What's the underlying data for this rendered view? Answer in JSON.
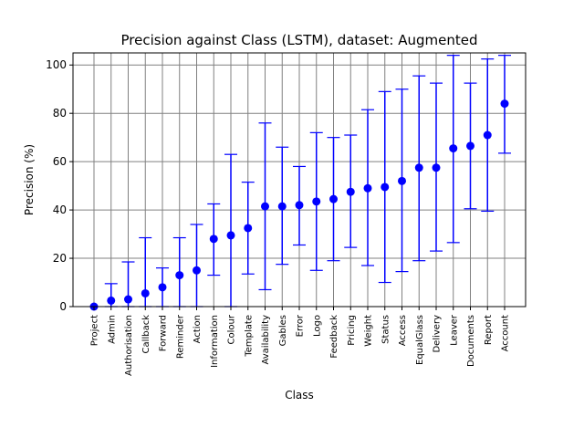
{
  "chart_data": {
    "type": "scatter",
    "title": "Precision against Class (LSTM), dataset: Augmented",
    "xlabel": "Class",
    "ylabel": "Precision (%)",
    "ylim": [
      0,
      105
    ],
    "yticks": [
      "0",
      "20",
      "40",
      "60",
      "80",
      "100"
    ],
    "grid": true,
    "error_bars": true,
    "color": "#0000ff",
    "categories": [
      "Project",
      "Admin",
      "Authorisation",
      "Callback",
      "Forward",
      "Reminder",
      "Action",
      "Information",
      "Colour",
      "Template",
      "Availability",
      "Gables",
      "Error",
      "Logo",
      "Feedback",
      "Pricing",
      "Weight",
      "Status",
      "Access",
      "EqualGlass",
      "Delivery",
      "Leaver",
      "Documents",
      "Report",
      "Account"
    ],
    "values": [
      0,
      2.5,
      3,
      5.5,
      8,
      13,
      15,
      28,
      29.5,
      32.5,
      41.5,
      41.5,
      42,
      43.5,
      44.5,
      47.5,
      49,
      49.5,
      52,
      57.5,
      57.5,
      65.5,
      66.5,
      71,
      84
    ],
    "lower": [
      0,
      0,
      0,
      0,
      0,
      0,
      0,
      13,
      0,
      13.5,
      7,
      17.5,
      25.5,
      15,
      19,
      24.5,
      17,
      10,
      14.5,
      19,
      23,
      26.5,
      40.5,
      39.5,
      63.5
    ],
    "upper": [
      0,
      9.5,
      18.5,
      28.5,
      16,
      28.5,
      34,
      42.5,
      63,
      51.5,
      76,
      66,
      58,
      72,
      70,
      71,
      81.5,
      89,
      90,
      95.5,
      92.5,
      104,
      92.5,
      102.5,
      104
    ]
  }
}
